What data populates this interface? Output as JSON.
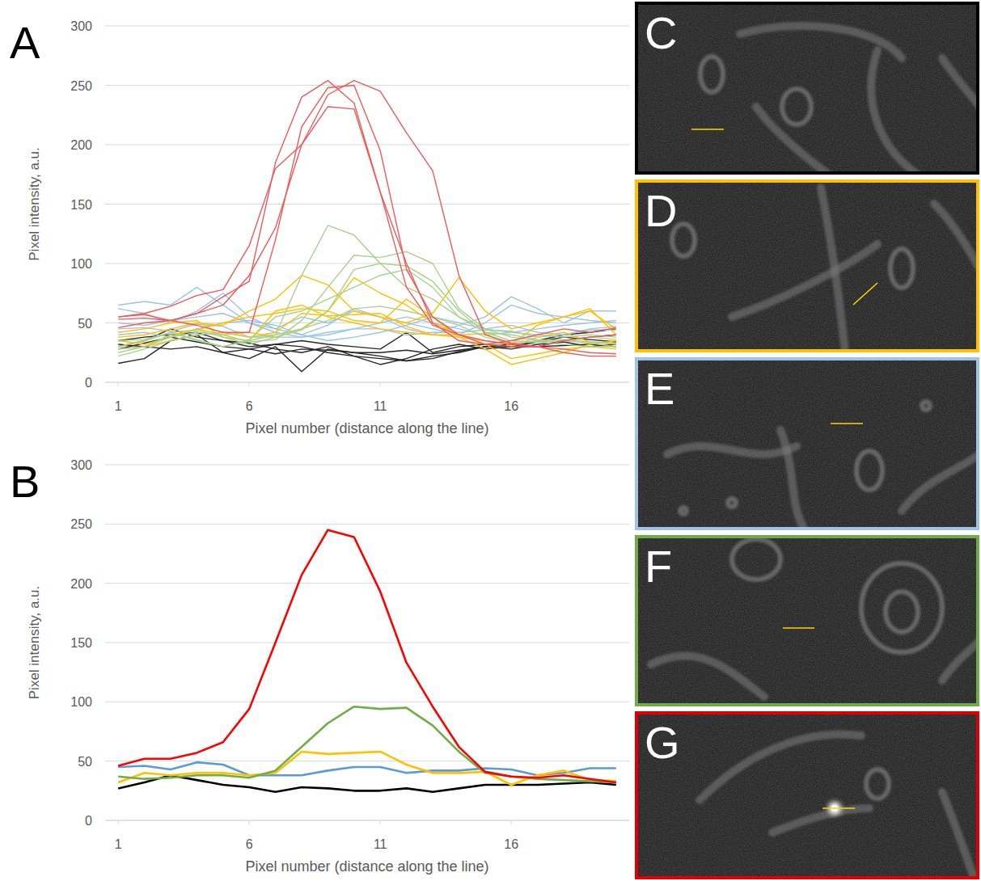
{
  "chart_data": [
    {
      "type": "line",
      "panel_label": "A",
      "x_label": "Pixel number (distance along the line)",
      "y_label": "Pixel intensity, a.u.",
      "x": [
        1,
        2,
        3,
        4,
        5,
        6,
        7,
        8,
        9,
        10,
        11,
        12,
        13,
        14,
        15,
        16,
        17,
        18,
        19,
        20
      ],
      "xlim": [
        0.5,
        20.5
      ],
      "xticks": [
        1,
        6,
        11,
        16
      ],
      "ylim": [
        0,
        300
      ],
      "yticks": [
        0,
        50,
        100,
        150,
        200,
        250,
        300
      ],
      "grid": true,
      "series": [
        {
          "color": "#262626",
          "values": [
            16,
            20,
            35,
            40,
            25,
            20,
            30,
            9,
            28,
            25,
            22,
            18,
            22,
            25,
            30,
            32,
            30,
            35,
            38,
            40
          ]
        },
        {
          "color": "#262626",
          "values": [
            30,
            35,
            45,
            38,
            35,
            33,
            28,
            25,
            30,
            22,
            15,
            20,
            28,
            32,
            28,
            30,
            34,
            38,
            36,
            34
          ]
        },
        {
          "color": "#262626",
          "values": [
            35,
            38,
            40,
            42,
            35,
            30,
            32,
            35,
            32,
            30,
            28,
            42,
            25,
            30,
            32,
            30,
            35,
            40,
            42,
            45
          ]
        },
        {
          "color": "#262626",
          "values": [
            28,
            33,
            38,
            34,
            30,
            28,
            24,
            28,
            27,
            25,
            25,
            27,
            24,
            27,
            30,
            30,
            30,
            31,
            32,
            30
          ]
        },
        {
          "color": "#262626",
          "values": [
            32,
            30,
            28,
            30,
            25,
            28,
            32,
            30,
            25,
            22,
            20,
            18,
            20,
            26,
            30,
            28,
            32,
            34,
            30,
            32
          ]
        },
        {
          "color": "#9dc3e6",
          "values": [
            65,
            68,
            65,
            80,
            65,
            50,
            45,
            55,
            50,
            60,
            55,
            45,
            40,
            48,
            55,
            72,
            62,
            50,
            60,
            60
          ]
        },
        {
          "color": "#9dc3e6",
          "values": [
            62,
            58,
            50,
            60,
            75,
            55,
            45,
            40,
            48,
            62,
            55,
            50,
            45,
            40,
            50,
            65,
            58,
            55,
            52,
            50
          ]
        },
        {
          "color": "#9dc3e6",
          "values": [
            45,
            46,
            43,
            49,
            47,
            38,
            38,
            38,
            42,
            45,
            45,
            40,
            42,
            42,
            44,
            43,
            38,
            40,
            44,
            44
          ]
        },
        {
          "color": "#9dc3e6",
          "values": [
            40,
            42,
            38,
            45,
            50,
            52,
            48,
            40,
            35,
            38,
            42,
            48,
            55,
            50,
            45,
            48,
            42,
            40,
            45,
            47
          ]
        },
        {
          "color": "#9dc3e6",
          "values": [
            50,
            48,
            52,
            55,
            58,
            50,
            42,
            38,
            40,
            45,
            50,
            55,
            50,
            45,
            40,
            42,
            45,
            48,
            50,
            52
          ]
        },
        {
          "color": "#ffc000",
          "values": [
            38,
            40,
            45,
            50,
            48,
            60,
            70,
            90,
            82,
            60,
            55,
            50,
            58,
            88,
            60,
            45,
            50,
            55,
            62,
            40
          ]
        },
        {
          "color": "#ffc000",
          "values": [
            30,
            35,
            42,
            44,
            50,
            55,
            58,
            62,
            60,
            88,
            75,
            65,
            50,
            40,
            32,
            20,
            24,
            28,
            30,
            28
          ]
        },
        {
          "color": "#ffc000",
          "values": [
            35,
            32,
            38,
            45,
            40,
            42,
            38,
            45,
            60,
            52,
            50,
            70,
            55,
            38,
            28,
            15,
            20,
            25,
            32,
            35
          ]
        },
        {
          "color": "#ffc000",
          "values": [
            42,
            45,
            50,
            52,
            38,
            35,
            60,
            65,
            55,
            50,
            45,
            42,
            40,
            38,
            35,
            32,
            48,
            55,
            60,
            45
          ]
        },
        {
          "color": "#ffc000",
          "values": [
            28,
            30,
            35,
            40,
            42,
            38,
            42,
            58,
            56,
            57,
            58,
            47,
            40,
            40,
            41,
            30,
            38,
            42,
            34,
            33
          ]
        },
        {
          "color": "#a9d18e",
          "values": [
            30,
            35,
            42,
            36,
            30,
            35,
            40,
            90,
            132,
            124,
            100,
            80,
            70,
            55,
            45,
            42,
            40,
            38,
            40,
            38
          ]
        },
        {
          "color": "#a9d18e",
          "values": [
            28,
            30,
            38,
            42,
            40,
            34,
            36,
            52,
            80,
            107,
            105,
            110,
            100,
            62,
            45,
            38,
            35,
            36,
            34,
            32
          ]
        },
        {
          "color": "#a9d18e",
          "values": [
            25,
            30,
            40,
            44,
            38,
            32,
            38,
            44,
            60,
            95,
            100,
            98,
            85,
            60,
            42,
            35,
            34,
            35,
            33,
            30
          ]
        },
        {
          "color": "#a9d18e",
          "values": [
            35,
            36,
            42,
            35,
            30,
            36,
            55,
            60,
            70,
            80,
            90,
            95,
            80,
            55,
            42,
            40,
            36,
            35,
            38,
            36
          ]
        },
        {
          "color": "#a9d18e",
          "values": [
            22,
            28,
            35,
            40,
            42,
            38,
            40,
            45,
            52,
            62,
            64,
            60,
            55,
            48,
            38,
            33,
            34,
            32,
            30,
            30
          ]
        },
        {
          "color": "#ee5a5a",
          "values": [
            55,
            57,
            52,
            58,
            72,
            85,
            185,
            240,
            254,
            235,
            160,
            80,
            48,
            40,
            35,
            32,
            30,
            28,
            25,
            24
          ]
        },
        {
          "color": "#ee5a5a",
          "values": [
            53,
            54,
            52,
            48,
            42,
            42,
            120,
            215,
            248,
            250,
            195,
            95,
            55,
            40,
            32,
            30,
            30,
            25,
            22,
            22
          ]
        },
        {
          "color": "#ee5a5a",
          "values": [
            55,
            58,
            64,
            73,
            78,
            115,
            180,
            200,
            232,
            230,
            160,
            100,
            50,
            35,
            32,
            35,
            40,
            45,
            42,
            46
          ]
        },
        {
          "color": "#ee5a5a",
          "values": [
            46,
            50,
            52,
            58,
            65,
            90,
            130,
            200,
            242,
            254,
            245,
            210,
            178,
            90,
            40,
            33,
            30,
            35,
            38,
            40
          ]
        }
      ]
    },
    {
      "type": "line",
      "panel_label": "B",
      "x_label": "Pixel number (distance along the line)",
      "y_label": "Pixel intensity, a.u.",
      "x": [
        1,
        2,
        3,
        4,
        5,
        6,
        7,
        8,
        9,
        10,
        11,
        12,
        13,
        14,
        15,
        16,
        17,
        18,
        19,
        20
      ],
      "xlim": [
        0.5,
        20.5
      ],
      "xticks": [
        1,
        6,
        11,
        16
      ],
      "ylim": [
        0,
        300
      ],
      "yticks": [
        0,
        50,
        100,
        150,
        200,
        250,
        300
      ],
      "grid": true,
      "series": [
        {
          "color": "#000000",
          "values": [
            27,
            32,
            38,
            34,
            30,
            28,
            24,
            28,
            27,
            25,
            25,
            27,
            24,
            27,
            30,
            30,
            30,
            31,
            32,
            30
          ]
        },
        {
          "color": "#5b9bd5",
          "values": [
            45,
            46,
            43,
            49,
            47,
            38,
            38,
            38,
            42,
            45,
            45,
            40,
            42,
            42,
            44,
            43,
            38,
            40,
            44,
            44
          ]
        },
        {
          "color": "#ffc000",
          "values": [
            32,
            40,
            38,
            40,
            40,
            38,
            40,
            58,
            56,
            57,
            58,
            47,
            40,
            40,
            41,
            30,
            38,
            42,
            34,
            33
          ]
        },
        {
          "color": "#70ad47",
          "values": [
            37,
            35,
            36,
            38,
            38,
            36,
            42,
            62,
            82,
            96,
            94,
            95,
            80,
            58,
            40,
            37,
            35,
            34,
            33,
            32
          ]
        },
        {
          "color": "#ff0000",
          "values": [
            46,
            52,
            52,
            57,
            66,
            94,
            150,
            207,
            245,
            239,
            193,
            133,
            96,
            62,
            41,
            37,
            36,
            38,
            35,
            32
          ]
        }
      ]
    }
  ],
  "images": [
    {
      "label": "C",
      "color": "#000000"
    },
    {
      "label": "D",
      "color": "#ffc000"
    },
    {
      "label": "E",
      "color": "#9dc3e6"
    },
    {
      "label": "F",
      "color": "#70ad47"
    },
    {
      "label": "G",
      "color": "#e00000"
    }
  ]
}
